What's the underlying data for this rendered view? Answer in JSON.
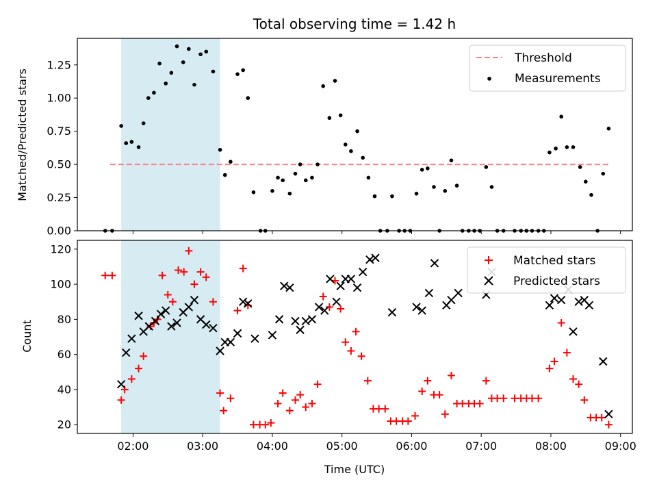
{
  "chart_data": [
    {
      "type": "scatter",
      "title": "Total observing time = 1.42 h",
      "xlabel": "",
      "ylabel": "Matched/Predicted stars",
      "x_tick_labels": [
        "02:00",
        "03:00",
        "04:00",
        "05:00",
        "06:00",
        "07:00",
        "08:00",
        "09:00"
      ],
      "y_ticks": [
        "0.00",
        "0.25",
        "0.50",
        "0.75",
        "1.00",
        "1.25"
      ],
      "xlim_hours": [
        1.2,
        9.17
      ],
      "ylim": [
        0,
        1.45
      ],
      "shaded_region_hours": [
        1.83,
        3.25
      ],
      "shaded_color": "#add8e6",
      "legend": {
        "placement": "top-right",
        "entries": [
          "Threshold",
          "Measurements"
        ]
      },
      "threshold": {
        "name": "Threshold",
        "y": 0.5,
        "x_hours": [
          1.67,
          8.83
        ],
        "color": "#ff7f7f",
        "style": "dashed"
      },
      "series": [
        {
          "name": "Measurements",
          "color": "#000000",
          "points": [
            [
              1.6,
              0
            ],
            [
              1.7,
              0
            ],
            [
              1.83,
              0.79
            ],
            [
              1.9,
              0.66
            ],
            [
              1.98,
              0.67
            ],
            [
              2.08,
              0.63
            ],
            [
              2.15,
              0.81
            ],
            [
              2.22,
              1.0
            ],
            [
              2.3,
              1.04
            ],
            [
              2.38,
              1.26
            ],
            [
              2.47,
              1.11
            ],
            [
              2.55,
              1.19
            ],
            [
              2.63,
              1.39
            ],
            [
              2.72,
              1.27
            ],
            [
              2.8,
              1.37
            ],
            [
              2.88,
              1.1
            ],
            [
              2.97,
              1.33
            ],
            [
              3.05,
              1.35
            ],
            [
              3.15,
              1.2
            ],
            [
              3.25,
              0.61
            ],
            [
              3.32,
              0.42
            ],
            [
              3.4,
              0.52
            ],
            [
              3.5,
              1.18
            ],
            [
              3.58,
              1.21
            ],
            [
              3.65,
              1.0
            ],
            [
              3.73,
              0.29
            ],
            [
              3.83,
              0
            ],
            [
              3.9,
              0
            ],
            [
              4.0,
              0.3
            ],
            [
              4.08,
              0.4
            ],
            [
              4.15,
              0.38
            ],
            [
              4.25,
              0.28
            ],
            [
              4.33,
              0.43
            ],
            [
              4.4,
              0.5
            ],
            [
              4.48,
              0.38
            ],
            [
              4.57,
              0.4
            ],
            [
              4.65,
              0.5
            ],
            [
              4.73,
              1.09
            ],
            [
              4.82,
              0.85
            ],
            [
              4.9,
              1.13
            ],
            [
              4.98,
              0.87
            ],
            [
              5.05,
              0.65
            ],
            [
              5.13,
              0.6
            ],
            [
              5.22,
              0.75
            ],
            [
              5.3,
              0.55
            ],
            [
              5.38,
              0.4
            ],
            [
              5.47,
              0.26
            ],
            [
              5.55,
              0
            ],
            [
              5.65,
              0
            ],
            [
              5.72,
              0.26
            ],
            [
              5.82,
              0
            ],
            [
              5.9,
              0
            ],
            [
              5.98,
              0
            ],
            [
              6.07,
              0.28
            ],
            [
              6.15,
              0.46
            ],
            [
              6.23,
              0.47
            ],
            [
              6.32,
              0.33
            ],
            [
              6.4,
              0
            ],
            [
              6.48,
              0.3
            ],
            [
              6.57,
              0.53
            ],
            [
              6.65,
              0.34
            ],
            [
              6.73,
              0
            ],
            [
              6.82,
              0
            ],
            [
              6.9,
              0
            ],
            [
              6.98,
              0
            ],
            [
              7.07,
              0.48
            ],
            [
              7.15,
              0.33
            ],
            [
              7.23,
              0
            ],
            [
              7.32,
              0
            ],
            [
              7.48,
              0
            ],
            [
              7.57,
              0
            ],
            [
              7.65,
              0
            ],
            [
              7.73,
              0
            ],
            [
              7.82,
              0
            ],
            [
              7.9,
              0
            ],
            [
              7.98,
              0.59
            ],
            [
              8.07,
              0.62
            ],
            [
              8.15,
              0.86
            ],
            [
              8.23,
              0.63
            ],
            [
              8.32,
              0.63
            ],
            [
              8.42,
              0.48
            ],
            [
              8.5,
              0.37
            ],
            [
              8.58,
              0.27
            ],
            [
              8.67,
              0
            ],
            [
              8.75,
              0.43
            ],
            [
              8.83,
              0.77
            ]
          ]
        }
      ]
    },
    {
      "type": "scatter",
      "title": "",
      "xlabel": "Time (UTC)",
      "ylabel": "Count",
      "x_tick_labels": [
        "02:00",
        "03:00",
        "04:00",
        "05:00",
        "06:00",
        "07:00",
        "08:00",
        "09:00"
      ],
      "y_ticks": [
        "20",
        "40",
        "60",
        "80",
        "100",
        "120"
      ],
      "xlim_hours": [
        1.2,
        9.17
      ],
      "ylim": [
        15,
        125
      ],
      "shaded_region_hours": [
        1.83,
        3.25
      ],
      "shaded_color": "#add8e6",
      "legend": {
        "placement": "top-right",
        "entries": [
          "Matched stars",
          "Predicted stars"
        ]
      },
      "series": [
        {
          "name": "Matched stars",
          "marker": "plus",
          "color": "#ff0000",
          "points": [
            [
              1.6,
              105
            ],
            [
              1.7,
              105
            ],
            [
              1.83,
              34
            ],
            [
              1.88,
              40
            ],
            [
              1.98,
              46
            ],
            [
              2.08,
              52
            ],
            [
              2.15,
              59
            ],
            [
              2.25,
              76
            ],
            [
              2.3,
              78
            ],
            [
              2.35,
              80
            ],
            [
              2.42,
              105
            ],
            [
              2.5,
              94
            ],
            [
              2.57,
              90
            ],
            [
              2.65,
              108
            ],
            [
              2.73,
              107
            ],
            [
              2.8,
              119
            ],
            [
              2.88,
              100
            ],
            [
              2.97,
              107
            ],
            [
              3.05,
              104
            ],
            [
              3.15,
              90
            ],
            [
              3.25,
              38
            ],
            [
              3.3,
              28
            ],
            [
              3.4,
              35
            ],
            [
              3.5,
              85
            ],
            [
              3.58,
              109
            ],
            [
              3.65,
              88
            ],
            [
              3.73,
              20
            ],
            [
              3.82,
              20
            ],
            [
              3.9,
              20
            ],
            [
              3.98,
              21
            ],
            [
              4.08,
              32
            ],
            [
              4.15,
              38
            ],
            [
              4.25,
              28
            ],
            [
              4.33,
              34
            ],
            [
              4.4,
              37
            ],
            [
              4.48,
              30
            ],
            [
              4.57,
              32
            ],
            [
              4.65,
              43
            ],
            [
              4.73,
              93
            ],
            [
              4.82,
              87
            ],
            [
              4.9,
              102
            ],
            [
              4.98,
              86
            ],
            [
              5.05,
              67
            ],
            [
              5.13,
              62
            ],
            [
              5.2,
              73
            ],
            [
              5.28,
              59
            ],
            [
              5.37,
              45
            ],
            [
              5.45,
              29
            ],
            [
              5.53,
              29
            ],
            [
              5.62,
              29
            ],
            [
              5.7,
              22
            ],
            [
              5.78,
              22
            ],
            [
              5.87,
              22
            ],
            [
              5.95,
              22
            ],
            [
              6.05,
              25
            ],
            [
              6.15,
              39
            ],
            [
              6.23,
              45
            ],
            [
              6.32,
              37
            ],
            [
              6.4,
              37
            ],
            [
              6.48,
              26
            ],
            [
              6.57,
              48
            ],
            [
              6.65,
              32
            ],
            [
              6.73,
              32
            ],
            [
              6.82,
              32
            ],
            [
              6.9,
              32
            ],
            [
              6.98,
              32
            ],
            [
              7.07,
              45
            ],
            [
              7.15,
              35
            ],
            [
              7.23,
              35
            ],
            [
              7.32,
              35
            ],
            [
              7.48,
              35
            ],
            [
              7.57,
              35
            ],
            [
              7.65,
              35
            ],
            [
              7.73,
              35
            ],
            [
              7.82,
              35
            ],
            [
              7.98,
              52
            ],
            [
              8.05,
              56
            ],
            [
              8.15,
              78
            ],
            [
              8.23,
              61
            ],
            [
              8.32,
              46
            ],
            [
              8.4,
              43
            ],
            [
              8.48,
              34
            ],
            [
              8.57,
              24
            ],
            [
              8.65,
              24
            ],
            [
              8.73,
              24
            ],
            [
              8.83,
              20
            ]
          ]
        },
        {
          "name": "Predicted stars",
          "marker": "x",
          "color": "#000000",
          "points": [
            [
              1.83,
              43
            ],
            [
              1.9,
              61
            ],
            [
              1.98,
              69
            ],
            [
              2.08,
              82
            ],
            [
              2.15,
              73
            ],
            [
              2.23,
              76
            ],
            [
              2.32,
              79
            ],
            [
              2.4,
              83
            ],
            [
              2.47,
              85
            ],
            [
              2.55,
              76
            ],
            [
              2.63,
              78
            ],
            [
              2.72,
              84
            ],
            [
              2.8,
              87
            ],
            [
              2.88,
              91
            ],
            [
              2.97,
              80
            ],
            [
              3.05,
              77
            ],
            [
              3.15,
              75
            ],
            [
              3.25,
              62
            ],
            [
              3.32,
              67
            ],
            [
              3.4,
              67
            ],
            [
              3.5,
              72
            ],
            [
              3.58,
              90
            ],
            [
              3.65,
              89
            ],
            [
              3.75,
              69
            ],
            [
              4.0,
              71
            ],
            [
              4.1,
              80
            ],
            [
              4.17,
              99
            ],
            [
              4.25,
              98
            ],
            [
              4.33,
              79
            ],
            [
              4.4,
              74
            ],
            [
              4.48,
              79
            ],
            [
              4.57,
              80
            ],
            [
              4.67,
              87
            ],
            [
              4.75,
              85
            ],
            [
              4.83,
              103
            ],
            [
              4.92,
              90
            ],
            [
              4.98,
              99
            ],
            [
              5.05,
              103
            ],
            [
              5.13,
              103
            ],
            [
              5.22,
              98
            ],
            [
              5.3,
              107
            ],
            [
              5.4,
              114
            ],
            [
              5.48,
              115
            ],
            [
              5.72,
              84
            ],
            [
              6.07,
              87
            ],
            [
              6.15,
              85
            ],
            [
              6.25,
              95
            ],
            [
              6.33,
              112
            ],
            [
              6.5,
              88
            ],
            [
              6.57,
              91
            ],
            [
              6.67,
              95
            ],
            [
              7.07,
              94
            ],
            [
              7.15,
              107
            ],
            [
              7.98,
              88
            ],
            [
              8.05,
              92
            ],
            [
              8.15,
              91
            ],
            [
              8.25,
              97
            ],
            [
              8.32,
              73
            ],
            [
              8.4,
              90
            ],
            [
              8.48,
              91
            ],
            [
              8.55,
              88
            ],
            [
              8.75,
              56
            ],
            [
              8.83,
              26
            ]
          ]
        }
      ]
    }
  ]
}
